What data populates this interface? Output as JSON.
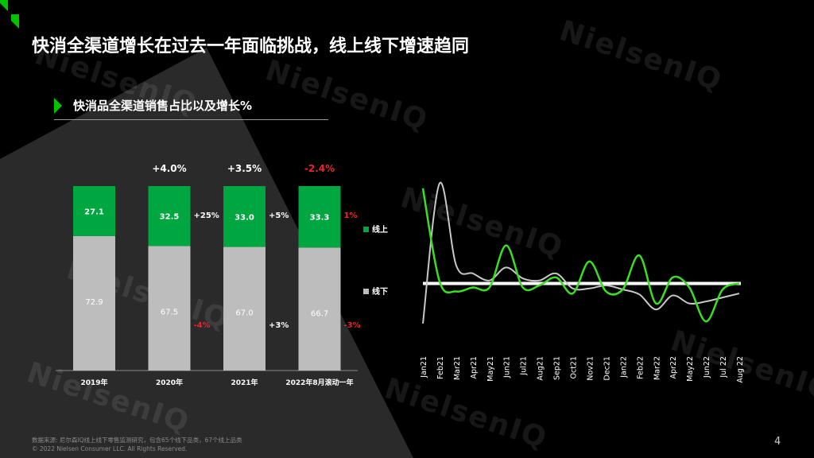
{
  "title": "快消全渠道增长在过去一年面临挑战，线上线下增速趋同",
  "subtitle": "快消品全渠道销售占比以及增长%",
  "footer": {
    "source": "数据来源: 尼尔森IQ线上线下零售监测研究，包含65个线下品类，67个线上品类",
    "copyright": "© 2022 Nielsen Consumer LLC. All Rights Reserved."
  },
  "page_number": "4",
  "watermark": "NielsenIQ",
  "colors": {
    "online": "#00a63f",
    "offline": "#bdbdbd",
    "negative": "#e8262b",
    "line_green": "#39e01f",
    "line_gray": "#c8c8c8"
  },
  "chart_data": [
    {
      "type": "bar",
      "stacked": true,
      "categories": [
        "2019年",
        "2020年",
        "2021年",
        "2022年8月滚动一年"
      ],
      "series": [
        {
          "name": "线上",
          "values": [
            27.1,
            32.5,
            33.0,
            33.3
          ]
        },
        {
          "name": "线下",
          "values": [
            72.9,
            67.5,
            67.0,
            66.7
          ]
        }
      ],
      "total_growth": [
        "",
        "+4.0%",
        "+3.5%",
        "-2.4%"
      ],
      "online_growth": [
        "",
        "+25%",
        "+5%",
        "1%"
      ],
      "offline_growth": [
        "",
        "-4%",
        "+3%",
        "-3%"
      ],
      "ylim": [
        0,
        100
      ]
    },
    {
      "type": "line",
      "x": [
        "Jan21",
        "Feb21",
        "Mar21",
        "Apr21",
        "May21",
        "Jun21",
        "Jul21",
        "Aug21",
        "Sep21",
        "Oct21",
        "Nov21",
        "Dec21",
        "Jan22",
        "Feb22",
        "Mar22",
        "Apr22",
        "May22",
        "Jun22",
        "Jul 22",
        "Aug 22"
      ],
      "series": [
        {
          "name": "线上",
          "values": [
            95,
            2,
            -8,
            -4,
            -4,
            38,
            -4,
            -2,
            6,
            -10,
            22,
            -8,
            -6,
            28,
            -20,
            6,
            -4,
            -38,
            -6,
            0
          ]
        },
        {
          "name": "线下",
          "values": [
            -40,
            100,
            18,
            10,
            3,
            16,
            5,
            3,
            10,
            -5,
            -5,
            -2,
            -6,
            -11,
            -26,
            -12,
            -20,
            -18,
            -14,
            -10
          ]
        }
      ],
      "ylim": [
        -60,
        110
      ]
    }
  ]
}
